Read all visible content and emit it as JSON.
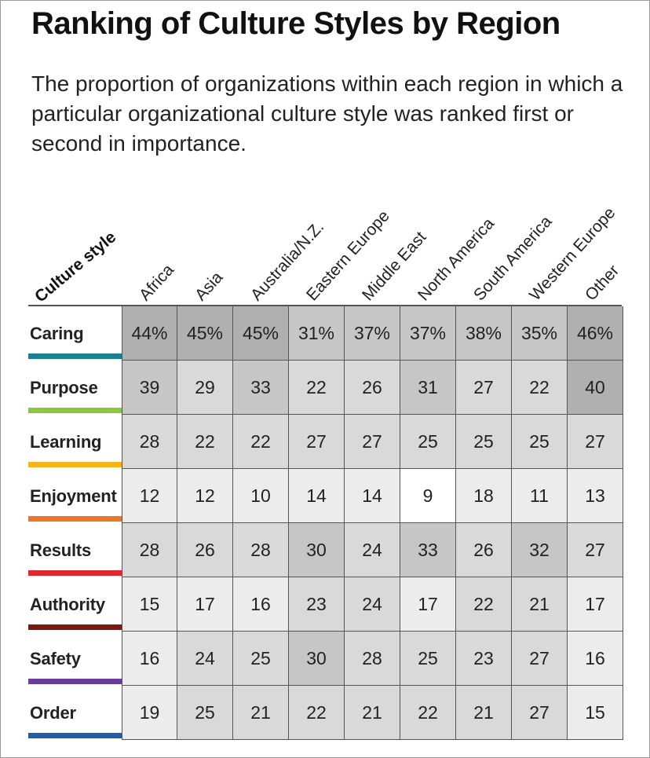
{
  "chart_data": {
    "type": "table",
    "title": "Ranking of Culture Styles by Region",
    "subtitle": "The proportion of organizations within each region in which a particular organizational culture style was ranked first or second in importance.",
    "corner_label": "Culture style",
    "columns": [
      "Africa",
      "Asia",
      "Australia/N.Z.",
      "Eastern Europe",
      "Middle East",
      "North America",
      "South America",
      "Western Europe",
      "Other"
    ],
    "rows": [
      {
        "name": "Caring",
        "bar_color": "#1a7f8e",
        "values": [
          44,
          45,
          45,
          31,
          37,
          37,
          38,
          35,
          46
        ],
        "display": [
          "44%",
          "45%",
          "45%",
          "31%",
          "37%",
          "37%",
          "38%",
          "35%",
          "46%"
        ]
      },
      {
        "name": "Purpose",
        "bar_color": "#8cc63f",
        "values": [
          39,
          29,
          33,
          22,
          26,
          31,
          27,
          22,
          40
        ],
        "display": [
          "39",
          "29",
          "33",
          "22",
          "26",
          "31",
          "27",
          "22",
          "40"
        ]
      },
      {
        "name": "Learning",
        "bar_color": "#f4b41a",
        "values": [
          28,
          22,
          22,
          27,
          27,
          25,
          25,
          25,
          27
        ],
        "display": [
          "28",
          "22",
          "22",
          "27",
          "27",
          "25",
          "25",
          "25",
          "27"
        ]
      },
      {
        "name": "Enjoyment",
        "bar_color": "#e8782a",
        "values": [
          12,
          12,
          10,
          14,
          14,
          9,
          18,
          11,
          13
        ],
        "display": [
          "12",
          "12",
          "10",
          "14",
          "14",
          "9",
          "18",
          "11",
          "13"
        ]
      },
      {
        "name": "Results",
        "bar_color": "#e0262f",
        "values": [
          28,
          26,
          28,
          30,
          24,
          33,
          26,
          32,
          27
        ],
        "display": [
          "28",
          "26",
          "28",
          "30",
          "24",
          "33",
          "26",
          "32",
          "27"
        ]
      },
      {
        "name": "Authority",
        "bar_color": "#7a1a10",
        "values": [
          15,
          17,
          16,
          23,
          24,
          17,
          22,
          21,
          17
        ],
        "display": [
          "15",
          "17",
          "16",
          "23",
          "24",
          "17",
          "22",
          "21",
          "17"
        ]
      },
      {
        "name": "Safety",
        "bar_color": "#6a3d9a",
        "values": [
          16,
          24,
          25,
          30,
          28,
          25,
          23,
          27,
          16
        ],
        "display": [
          "16",
          "24",
          "25",
          "30",
          "28",
          "25",
          "23",
          "27",
          "16"
        ]
      },
      {
        "name": "Order",
        "bar_color": "#1f5fa8",
        "values": [
          19,
          25,
          21,
          22,
          21,
          22,
          21,
          27,
          15
        ],
        "display": [
          "19",
          "25",
          "21",
          "22",
          "21",
          "22",
          "21",
          "27",
          "15"
        ]
      }
    ],
    "value_unit": "%"
  }
}
